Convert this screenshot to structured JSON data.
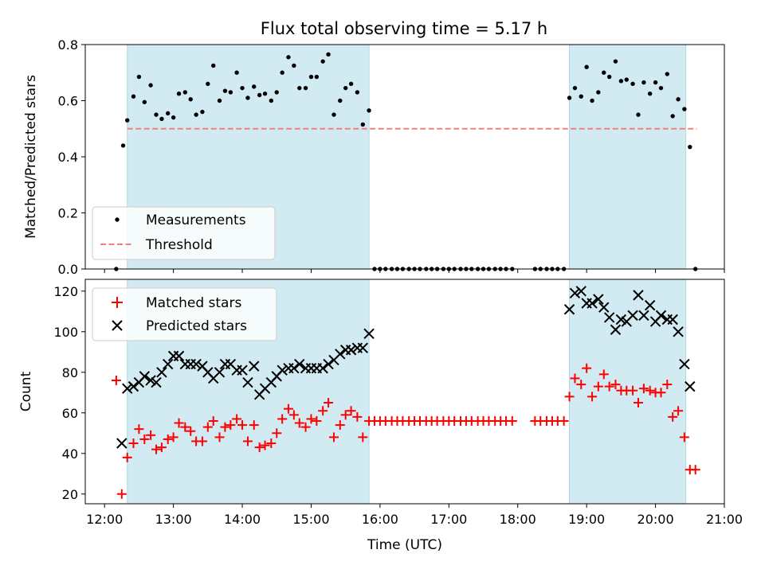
{
  "chart_data": {
    "title": "Flux total observing time = 5.17 h",
    "xlabel": "Time (UTC)",
    "x_unit": "hours UTC",
    "x_tick_labels": [
      "12:00",
      "13:00",
      "14:00",
      "15:00",
      "16:00",
      "17:00",
      "18:00",
      "19:00",
      "20:00",
      "21:00"
    ],
    "xlim": [
      11.72,
      21.0
    ],
    "shaded_intervals": [
      [
        12.33,
        15.84
      ],
      [
        18.75,
        20.44
      ]
    ],
    "shade_color": "#add8e6",
    "panels": [
      {
        "type": "scatter",
        "ylabel": "Matched/Predicted stars",
        "ylim": [
          0.0,
          0.8
        ],
        "yticks": [
          "0.0",
          "0.2",
          "0.4",
          "0.6",
          "0.8"
        ],
        "legend": "lower-left",
        "threshold": {
          "name": "Threshold",
          "value": 0.5,
          "x_range": [
            12.33,
            20.6
          ],
          "color": "#f08080"
        },
        "series": [
          {
            "name": "Measurements",
            "color": "#000000",
            "marker": "dot",
            "x": [
              12.17,
              12.27,
              12.33,
              12.42,
              12.5,
              12.58,
              12.67,
              12.75,
              12.83,
              12.92,
              13.0,
              13.08,
              13.17,
              13.25,
              13.33,
              13.42,
              13.5,
              13.58,
              13.67,
              13.75,
              13.83,
              13.92,
              14.0,
              14.08,
              14.17,
              14.25,
              14.33,
              14.42,
              14.5,
              14.58,
              14.67,
              14.75,
              14.83,
              14.92,
              15.0,
              15.08,
              15.17,
              15.25,
              15.33,
              15.42,
              15.5,
              15.58,
              15.67,
              15.75,
              15.84,
              15.92,
              16.0,
              16.08,
              16.17,
              16.25,
              16.33,
              16.42,
              16.5,
              16.58,
              16.67,
              16.75,
              16.83,
              16.92,
              17.0,
              17.08,
              17.17,
              17.25,
              17.33,
              17.42,
              17.5,
              17.58,
              17.67,
              17.75,
              17.83,
              17.92,
              18.25,
              18.33,
              18.42,
              18.5,
              18.58,
              18.67,
              18.75,
              18.83,
              18.92,
              19.0,
              19.08,
              19.17,
              19.25,
              19.33,
              19.42,
              19.5,
              19.58,
              19.67,
              19.75,
              19.83,
              19.92,
              20.0,
              20.08,
              20.17,
              20.25,
              20.33,
              20.42,
              20.5,
              20.58
            ],
            "y": [
              0.0,
              0.44,
              0.53,
              0.615,
              0.685,
              0.595,
              0.655,
              0.55,
              0.535,
              0.555,
              0.54,
              0.625,
              0.63,
              0.605,
              0.55,
              0.56,
              0.66,
              0.725,
              0.6,
              0.635,
              0.63,
              0.7,
              0.645,
              0.61,
              0.65,
              0.62,
              0.625,
              0.6,
              0.63,
              0.7,
              0.755,
              0.725,
              0.645,
              0.645,
              0.685,
              0.685,
              0.74,
              0.765,
              0.55,
              0.6,
              0.645,
              0.66,
              0.63,
              0.515,
              0.565,
              0.0,
              0.0,
              0.0,
              0.0,
              0.0,
              0.0,
              0.0,
              0.0,
              0.0,
              0.0,
              0.0,
              0.0,
              0.0,
              0.0,
              0.0,
              0.0,
              0.0,
              0.0,
              0.0,
              0.0,
              0.0,
              0.0,
              0.0,
              0.0,
              0.0,
              0.0,
              0.0,
              0.0,
              0.0,
              0.0,
              0.0,
              0.61,
              0.645,
              0.615,
              0.72,
              0.6,
              0.63,
              0.7,
              0.685,
              0.74,
              0.67,
              0.675,
              0.66,
              0.55,
              0.665,
              0.625,
              0.665,
              0.645,
              0.695,
              0.545,
              0.605,
              0.57,
              0.435,
              0.0
            ]
          }
        ]
      },
      {
        "type": "scatter",
        "ylabel": "Count",
        "ylim": [
          15.2,
          125.8
        ],
        "yticks": [
          "20",
          "40",
          "60",
          "80",
          "100",
          "120"
        ],
        "legend": "upper-left",
        "series": [
          {
            "name": "Matched stars",
            "color": "#ff0000",
            "marker": "plus",
            "x": [
              12.17,
              12.25,
              12.33,
              12.42,
              12.5,
              12.58,
              12.67,
              12.75,
              12.83,
              12.92,
              13.0,
              13.08,
              13.17,
              13.25,
              13.33,
              13.42,
              13.5,
              13.58,
              13.67,
              13.75,
              13.83,
              13.92,
              14.0,
              14.08,
              14.17,
              14.25,
              14.33,
              14.42,
              14.5,
              14.58,
              14.67,
              14.75,
              14.83,
              14.92,
              15.0,
              15.08,
              15.17,
              15.25,
              15.33,
              15.42,
              15.5,
              15.58,
              15.67,
              15.75,
              15.84,
              15.92,
              16.0,
              16.08,
              16.17,
              16.25,
              16.33,
              16.42,
              16.5,
              16.58,
              16.67,
              16.75,
              16.83,
              16.92,
              17.0,
              17.08,
              17.17,
              17.25,
              17.33,
              17.42,
              17.5,
              17.58,
              17.67,
              17.75,
              17.83,
              17.92,
              18.25,
              18.33,
              18.42,
              18.5,
              18.58,
              18.67,
              18.75,
              18.83,
              18.92,
              19.0,
              19.08,
              19.17,
              19.25,
              19.33,
              19.42,
              19.5,
              19.58,
              19.67,
              19.75,
              19.83,
              19.92,
              20.0,
              20.08,
              20.17,
              20.25,
              20.33,
              20.42,
              20.5,
              20.58
            ],
            "y": [
              76,
              20,
              38,
              45,
              52,
              47,
              49,
              42,
              43,
              47,
              48,
              55,
              53,
              51,
              46,
              46,
              53,
              56,
              48,
              53,
              54,
              57,
              54,
              46,
              54,
              43,
              44,
              45,
              50,
              57,
              62,
              59,
              55,
              53,
              57,
              56,
              61,
              65,
              48,
              54,
              59,
              61,
              58,
              48,
              56,
              56,
              56,
              56,
              56,
              56,
              56,
              56,
              56,
              56,
              56,
              56,
              56,
              56,
              56,
              56,
              56,
              56,
              56,
              56,
              56,
              56,
              56,
              56,
              56,
              56,
              56,
              56,
              56,
              56,
              56,
              56,
              68,
              77,
              74,
              82,
              68,
              73,
              79,
              73,
              74,
              71,
              71,
              71,
              65,
              72,
              71,
              70,
              70,
              74,
              58,
              61,
              48,
              32,
              32
            ]
          },
          {
            "name": "Predicted stars",
            "color": "#000000",
            "marker": "x",
            "x": [
              12.25,
              12.33,
              12.42,
              12.5,
              12.58,
              12.67,
              12.75,
              12.83,
              12.92,
              13.0,
              13.08,
              13.17,
              13.25,
              13.33,
              13.42,
              13.5,
              13.58,
              13.67,
              13.75,
              13.83,
              13.92,
              14.0,
              14.08,
              14.17,
              14.25,
              14.33,
              14.42,
              14.5,
              14.58,
              14.67,
              14.75,
              14.83,
              14.92,
              15.0,
              15.08,
              15.17,
              15.25,
              15.33,
              15.42,
              15.5,
              15.58,
              15.67,
              15.75,
              15.84,
              18.75,
              18.83,
              18.92,
              19.0,
              19.08,
              19.17,
              19.25,
              19.33,
              19.42,
              19.5,
              19.58,
              19.67,
              19.75,
              19.83,
              19.92,
              20.0,
              20.08,
              20.17,
              20.25,
              20.33,
              20.42,
              20.5
            ],
            "y": [
              45,
              72,
              73,
              75,
              78,
              76,
              75,
              80,
              84,
              88,
              88,
              84,
              84,
              84,
              83,
              80,
              77,
              80,
              84,
              84,
              81,
              81,
              75,
              83,
              69,
              72,
              75,
              78,
              81,
              82,
              82,
              84,
              82,
              82,
              82,
              82,
              84,
              86,
              89,
              91,
              91,
              92,
              92,
              99,
              111,
              119,
              120,
              114,
              114,
              116,
              112,
              107,
              101,
              106,
              105,
              108,
              118,
              108,
              113,
              105,
              108,
              106,
              106,
              100,
              84,
              73
            ]
          }
        ]
      }
    ]
  }
}
